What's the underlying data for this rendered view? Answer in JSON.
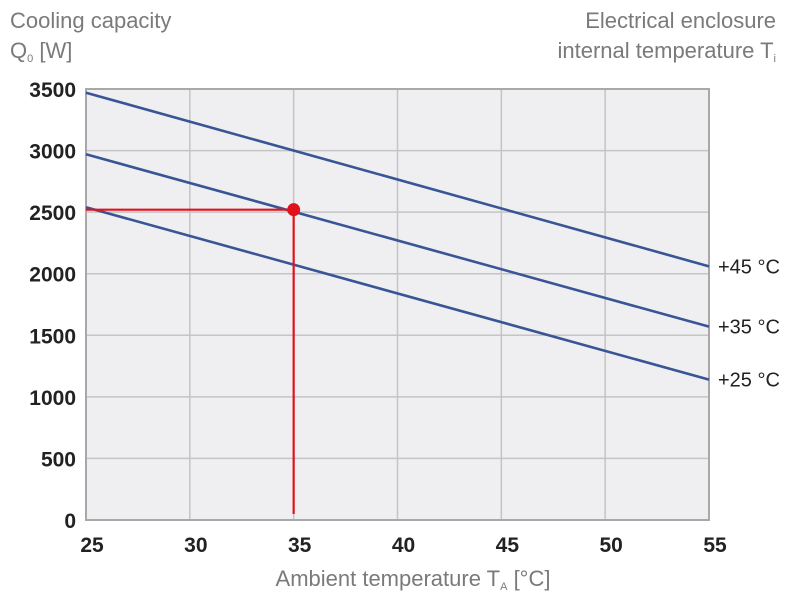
{
  "chart_data": {
    "type": "line",
    "title_left": {
      "line1": "Cooling capacity",
      "line2_main": "Q",
      "line2_sub": "0",
      "line2_unit": " [W]"
    },
    "title_right": {
      "line1": "Electrical enclosure",
      "line2_main": "internal temperature T",
      "line2_sub": "i"
    },
    "xlabel": {
      "main": "Ambient temperature T",
      "sub": "A",
      "unit": " [°C]"
    },
    "xlim": [
      25,
      55
    ],
    "ylim": [
      0,
      3500
    ],
    "x_ticks": [
      "25",
      "30",
      "35",
      "40",
      "45",
      "50",
      "55"
    ],
    "x_tick_values": [
      25,
      30,
      35,
      40,
      45,
      50,
      55
    ],
    "y_ticks": [
      "0",
      "500",
      "1000",
      "1500",
      "2000",
      "2500",
      "3000",
      "3500"
    ],
    "y_tick_values": [
      0,
      500,
      1000,
      1500,
      2000,
      2500,
      3000,
      3500
    ],
    "grid": true,
    "series": [
      {
        "name": "+45 °C",
        "x": [
          25,
          55
        ],
        "y": [
          3470,
          2060
        ]
      },
      {
        "name": "+35 °C",
        "x": [
          25,
          55
        ],
        "y": [
          2970,
          1570
        ]
      },
      {
        "name": "+25 °C",
        "x": [
          25,
          55
        ],
        "y": [
          2540,
          1140
        ]
      }
    ],
    "annotation": {
      "x": 35,
      "y": 2520
    },
    "colors": {
      "series": "#3a5596",
      "annotation": "#e0121c",
      "grid": "#c4c4c4",
      "plot_bg": "#efeff1",
      "frame": "#a8a8a8"
    }
  }
}
